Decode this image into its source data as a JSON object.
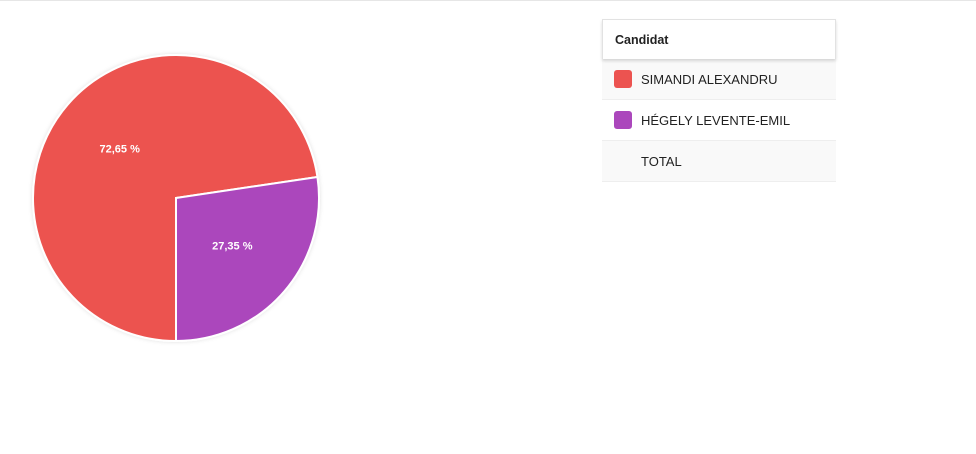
{
  "chart_data": {
    "type": "pie",
    "categories": [
      "SIMANDI ALEXANDRU",
      "HÉGELY LEVENTE-EMIL"
    ],
    "values": [
      72.65,
      27.35
    ],
    "value_labels": [
      "72,65 %",
      "27,35 %"
    ],
    "colors": [
      "#ec5350",
      "#ab47bc"
    ]
  },
  "table": {
    "header": "Candidat",
    "total": "TOTAL"
  }
}
